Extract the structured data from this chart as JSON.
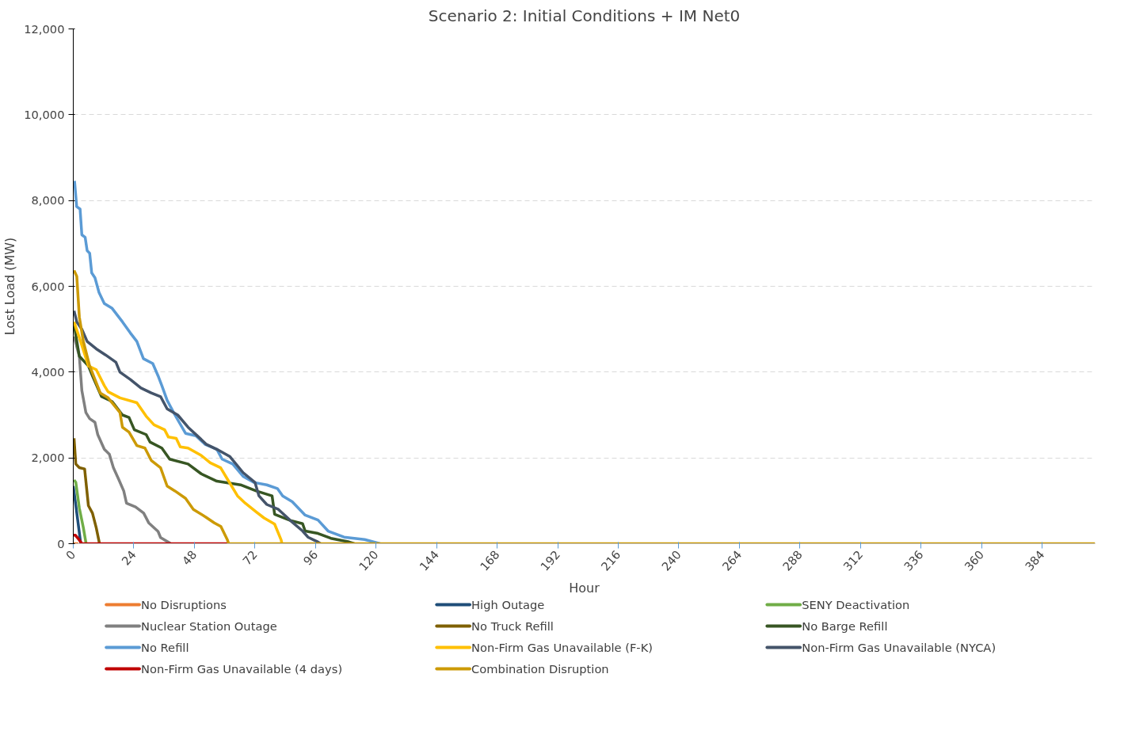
{
  "chart_data": {
    "type": "line",
    "title": "Scenario 2: Initial Conditions + IM Net0",
    "xlabel": "Hour",
    "ylabel": "Lost Load (MW)",
    "xlim": [
      0,
      405
    ],
    "xticks": [
      0,
      24,
      48,
      72,
      96,
      120,
      144,
      168,
      192,
      216,
      240,
      264,
      288,
      312,
      336,
      360,
      384
    ],
    "ylim": [
      0,
      12000
    ],
    "yticks": [
      0,
      {
        "value": 2000,
        "label": "2,000"
      },
      {
        "value": 4000,
        "label": "4,000"
      },
      {
        "value": 6000,
        "label": "6,000"
      },
      {
        "value": 8000,
        "label": "8,000"
      },
      {
        "value": 10000,
        "label": "10,000"
      },
      {
        "value": 12000,
        "label": "12,000"
      }
    ],
    "grid": "y",
    "legend": "bottom",
    "line_style": "solid",
    "marker": "none",
    "series": [
      {
        "name": "No Disruptions",
        "color": "#ed7d31",
        "x": [
          0,
          2
        ],
        "values": [
          0,
          0
        ]
      },
      {
        "name": "High Outage",
        "color": "#1f4e79",
        "x": [
          0,
          1.4,
          2.9,
          3.1
        ],
        "values": [
          1343,
          714,
          29,
          0
        ]
      },
      {
        "name": "SENY Deactivation",
        "color": "#70ad47",
        "x": [
          0.3,
          1,
          2.4,
          4,
          5,
          5.2
        ],
        "values": [
          1486,
          1429,
          829,
          371,
          29,
          0
        ]
      },
      {
        "name": "Nuclear Station Outage",
        "color": "#808080",
        "x": [
          0.3,
          2.4,
          3.4,
          5,
          6.5,
          8.6,
          9.7,
          12.3,
          14.3,
          15.9,
          17.9,
          20,
          21.1,
          24.7,
          27.9,
          29.9,
          33.6,
          34.6,
          38.2,
          38.5
        ],
        "values": [
          4829,
          4371,
          3571,
          3057,
          2914,
          2829,
          2543,
          2200,
          2086,
          1771,
          1514,
          1229,
          943,
          857,
          714,
          486,
          286,
          143,
          17,
          0
        ]
      },
      {
        "name": "No Truck Refill",
        "color": "#7f6000",
        "x": [
          0.3,
          1,
          2.4,
          4.5,
          6,
          7.6,
          9.1,
          10.2,
          10.4
        ],
        "values": [
          2457,
          1857,
          1771,
          1743,
          886,
          714,
          371,
          57,
          0
        ]
      },
      {
        "name": "No Barge Refill",
        "color": "#375623",
        "x": [
          0.3,
          2.4,
          6,
          7.6,
          11.2,
          15.4,
          19.5,
          22.1,
          24.2,
          28.9,
          30.4,
          35.1,
          38.2,
          45.5,
          50.7,
          56.9,
          66.3,
          72.5,
          78.8,
          79.8,
          86,
          90.9,
          91.9,
          97,
          102.1,
          109.3,
          111.4
        ],
        "values": [
          5114,
          4371,
          4143,
          3914,
          3429,
          3314,
          3000,
          2943,
          2657,
          2543,
          2371,
          2229,
          1971,
          1857,
          1629,
          1457,
          1371,
          1229,
          1114,
          686,
          543,
          466,
          295,
          239,
          125,
          40,
          0
        ]
      },
      {
        "name": "No Refill",
        "color": "#5b9bd5",
        "x": [
          0.5,
          1.35,
          2.7,
          3.4,
          4.7,
          5.5,
          6.5,
          7.3,
          8.6,
          10.2,
          12.3,
          15.4,
          19.5,
          22.6,
          25.2,
          27.8,
          31.5,
          33.6,
          35.1,
          37.2,
          40.3,
          44.5,
          48.6,
          52.3,
          56.9,
          59,
          63.2,
          67.3,
          71.5,
          76.7,
          80.9,
          83,
          86.8,
          91.9,
          97,
          101,
          107.3,
          115.5,
          121.6
        ],
        "values": [
          8457,
          7857,
          7800,
          7200,
          7143,
          6829,
          6771,
          6314,
          6200,
          5857,
          5600,
          5486,
          5171,
          4914,
          4714,
          4314,
          4200,
          3914,
          3686,
          3343,
          3000,
          2571,
          2514,
          2314,
          2200,
          1971,
          1857,
          1571,
          1429,
          1371,
          1286,
          1114,
          977,
          665,
          551,
          295,
          153,
          97,
          0
        ]
      },
      {
        "name": "Non-Firm Gas Unavailable (F-K)",
        "color": "#ffc000",
        "x": [
          0.3,
          2.9,
          6,
          9.1,
          12.3,
          13.8,
          18.5,
          25.2,
          28.9,
          32,
          36.2,
          37.7,
          40.8,
          42.4,
          45.5,
          50.7,
          54.3,
          58.4,
          61,
          65.1,
          68.2,
          72.5,
          75.6,
          79.8,
          82.4,
          82.7
        ],
        "values": [
          5171,
          4714,
          4143,
          4057,
          3686,
          3543,
          3400,
          3286,
          2971,
          2771,
          2657,
          2486,
          2457,
          2257,
          2229,
          2057,
          1886,
          1771,
          1514,
          1114,
          943,
          743,
          600,
          457,
          86,
          0
        ]
      },
      {
        "name": "Non-Firm Gas Unavailable (NYCA)",
        "color": "#44546a",
        "x": [
          0.3,
          1.4,
          3.4,
          5.5,
          9.1,
          12.8,
          16.9,
          18.5,
          22.6,
          26.8,
          30.9,
          34.6,
          37.2,
          41.4,
          45.5,
          49.7,
          52.8,
          56.9,
          62.1,
          67.3,
          72,
          73.6,
          76.7,
          81.3,
          86,
          90.9,
          93,
          97,
          98
        ],
        "values": [
          5429,
          5171,
          5000,
          4714,
          4543,
          4400,
          4229,
          4000,
          3829,
          3629,
          3514,
          3429,
          3143,
          3000,
          2714,
          2486,
          2314,
          2200,
          2029,
          1657,
          1429,
          1114,
          914,
          800,
          543,
          295,
          153,
          40,
          0
        ]
      },
      {
        "name": "Non-Firm Gas Unavailable (4 days)",
        "color": "#c00000",
        "x": [
          0,
          0.8,
          2.4,
          3.4,
          61.5
        ],
        "values": [
          200,
          200,
          86,
          0,
          0
        ]
      },
      {
        "name": "Combination Disruption",
        "color": "#cc9a06",
        "x": [
          0.3,
          1.4,
          2.4,
          4,
          6.5,
          10.7,
          13.8,
          18.5,
          19.5,
          22.1,
          25.2,
          28.4,
          30.9,
          34.6,
          37.2,
          40.3,
          44.5,
          47.6,
          52.3,
          55.9,
          58.5,
          61.1,
          61.6,
          405
        ],
        "values": [
          6371,
          6229,
          5286,
          4714,
          4143,
          3514,
          3400,
          3057,
          2714,
          2600,
          2286,
          2229,
          1943,
          1771,
          1343,
          1229,
          1057,
          800,
          629,
          486,
          400,
          86,
          0,
          0
        ]
      }
    ]
  }
}
